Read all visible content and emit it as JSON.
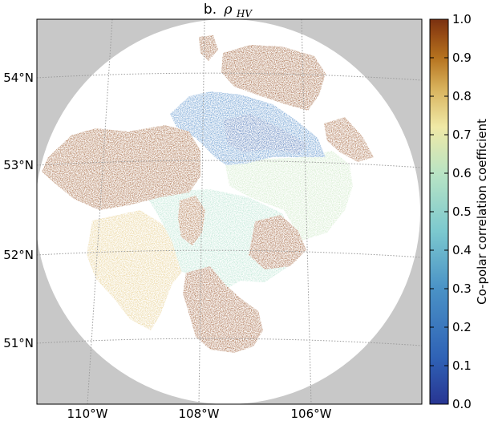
{
  "title": {
    "prefix": "b.",
    "symbol": "ρ",
    "subscript": "HV"
  },
  "map": {
    "lat_labels": [
      "54°N",
      "53°N",
      "52°N",
      "51°N"
    ],
    "lon_labels": [
      "110°W",
      "108°W",
      "106°W"
    ],
    "outside_color": "#c8c8c8",
    "disk_color": "#ffffff",
    "grid_color": "#9a9a9a"
  },
  "colorbar": {
    "label": "Co-polar correlation coefficient",
    "ticks": [
      "0.0",
      "0.1",
      "0.2",
      "0.3",
      "0.4",
      "0.5",
      "0.6",
      "0.7",
      "0.8",
      "0.9",
      "1.0"
    ],
    "range": [
      0.0,
      1.0
    ],
    "colormap": [
      "#283592",
      "#2f62b6",
      "#4a92c6",
      "#7cc9cf",
      "#b9e4c4",
      "#f0e9a6",
      "#d8b25c",
      "#b6731f",
      "#954a14",
      "#7a3010"
    ]
  },
  "field_regions": [
    {
      "name": "north-west echoes",
      "value": 0.95
    },
    {
      "name": "north-central blue band",
      "value": 0.3
    },
    {
      "name": "east light-green area",
      "value": 0.7
    },
    {
      "name": "south-west yellow area",
      "value": 0.8
    },
    {
      "name": "south brown echoes",
      "value": 0.97
    }
  ]
}
